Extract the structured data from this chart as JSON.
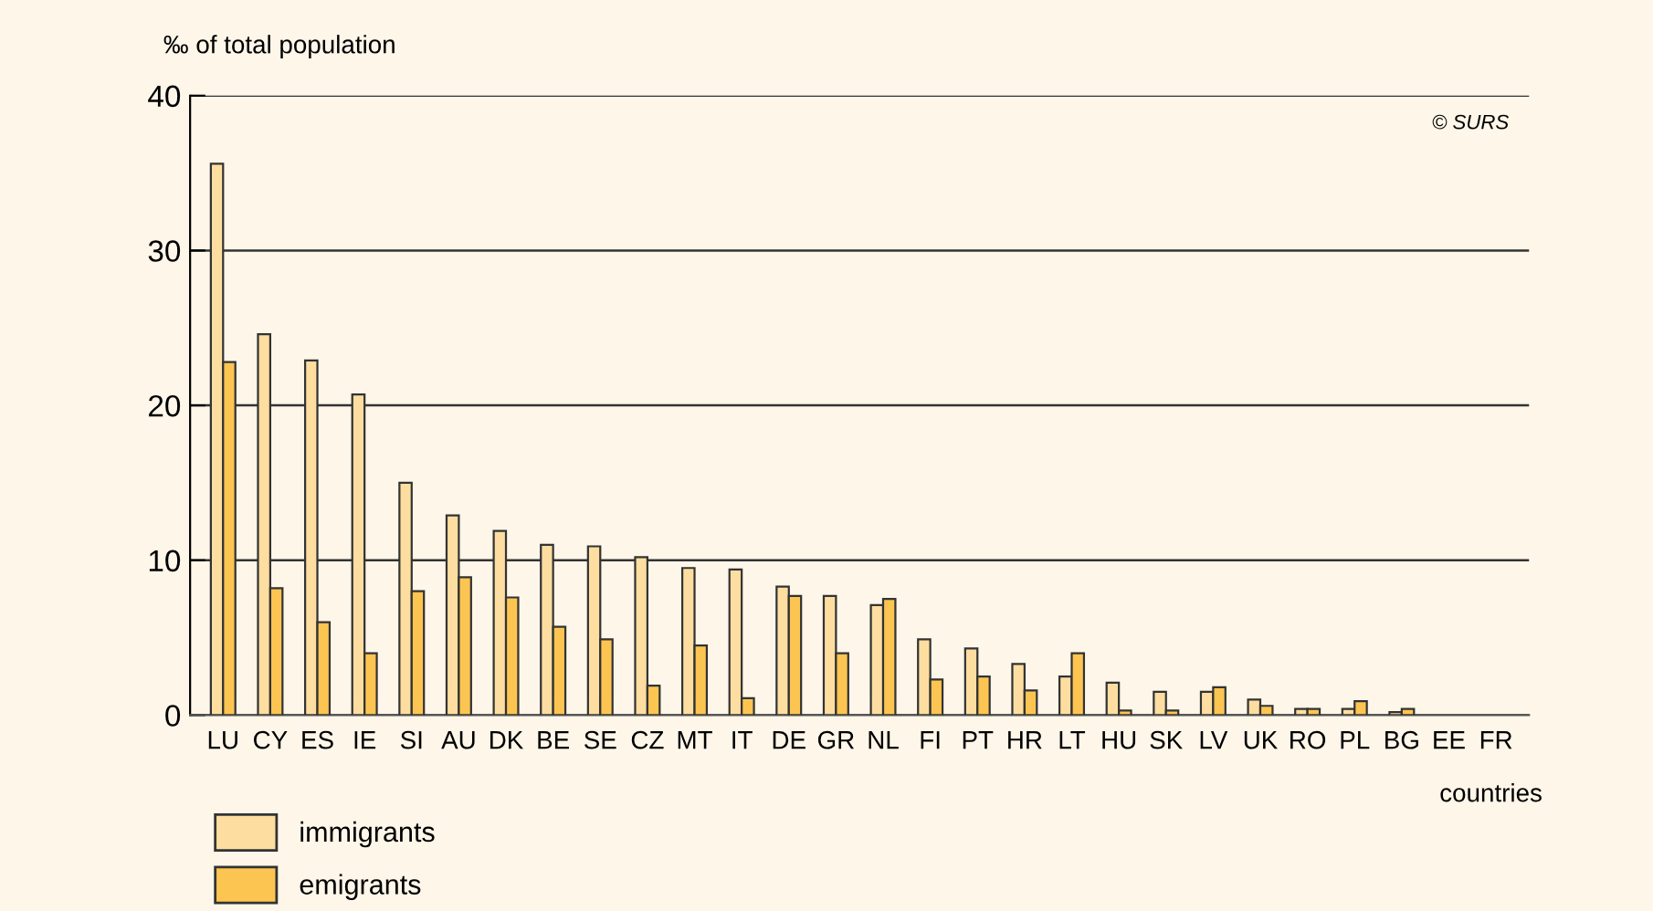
{
  "chart_data": {
    "type": "bar",
    "ylabel": "‰ of total population",
    "xlabel": "countries",
    "annotations": [
      "© SURS"
    ],
    "categories": [
      "LU",
      "CY",
      "ES",
      "IE",
      "SI",
      "AU",
      "DK",
      "BE",
      "SE",
      "CZ",
      "MT",
      "IT",
      "DE",
      "GR",
      "NL",
      "FI",
      "PT",
      "HR",
      "LT",
      "HU",
      "SK",
      "LV",
      "UK",
      "RO",
      "PL",
      "BG",
      "EE",
      "FR"
    ],
    "series": [
      {
        "name": "immigrants",
        "color": "#fddea0",
        "values": [
          35.6,
          24.6,
          22.9,
          20.7,
          15.0,
          12.9,
          11.9,
          11.0,
          10.9,
          10.2,
          9.5,
          9.4,
          8.3,
          7.7,
          7.1,
          4.9,
          4.3,
          3.3,
          2.5,
          2.1,
          1.5,
          1.5,
          1.0,
          0.4,
          0.4,
          0.2,
          null,
          null
        ]
      },
      {
        "name": "emigrants",
        "color": "#fcc552",
        "values": [
          22.8,
          8.2,
          6.0,
          4.0,
          8.0,
          8.9,
          7.6,
          5.7,
          4.9,
          1.9,
          4.5,
          1.1,
          7.7,
          4.0,
          7.5,
          2.3,
          2.5,
          1.6,
          4.0,
          0.3,
          0.3,
          1.8,
          0.6,
          0.4,
          0.9,
          0.4,
          null,
          null
        ]
      }
    ],
    "ylim": [
      0,
      40
    ],
    "yticks": [
      0,
      10,
      20,
      30,
      40
    ],
    "grid": "y",
    "legend": "bottom left"
  }
}
